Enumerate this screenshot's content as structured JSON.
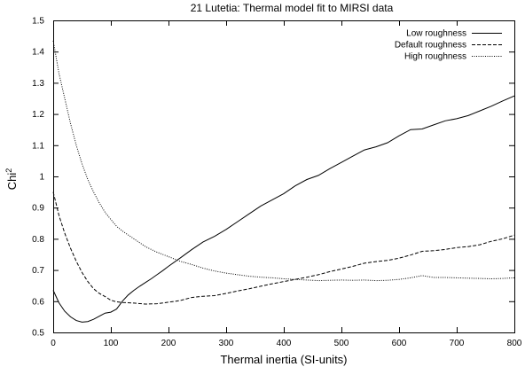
{
  "chart_data": {
    "type": "line",
    "title": "21 Lutetia: Thermal model fit to MIRSI data",
    "xlabel": "Thermal inertia (SI-units)",
    "ylabel_base": "Chi",
    "ylabel_sup": "2",
    "xlim": [
      0,
      800
    ],
    "ylim": [
      0.5,
      1.5
    ],
    "xticks": [
      0,
      100,
      200,
      300,
      400,
      500,
      600,
      700,
      800
    ],
    "yticks": [
      0.5,
      0.6,
      0.7,
      0.8,
      0.9,
      1,
      1.1,
      1.2,
      1.3,
      1.4,
      1.5
    ],
    "grid": false,
    "legend_position": "top-right",
    "series": [
      {
        "name": "Low roughness",
        "style": "solid",
        "x": [
          0,
          10,
          20,
          30,
          40,
          50,
          60,
          70,
          80,
          90,
          100,
          110,
          120,
          130,
          140,
          150,
          160,
          170,
          180,
          190,
          200,
          220,
          240,
          260,
          280,
          300,
          320,
          340,
          360,
          380,
          400,
          420,
          440,
          460,
          480,
          500,
          520,
          540,
          560,
          580,
          600,
          620,
          640,
          660,
          680,
          700,
          720,
          740,
          760,
          780,
          800
        ],
        "y": [
          0.635,
          0.595,
          0.568,
          0.55,
          0.538,
          0.533,
          0.535,
          0.542,
          0.552,
          0.562,
          0.565,
          0.575,
          0.6,
          0.62,
          0.635,
          0.648,
          0.66,
          0.672,
          0.685,
          0.698,
          0.712,
          0.738,
          0.765,
          0.79,
          0.808,
          0.83,
          0.855,
          0.88,
          0.905,
          0.925,
          0.945,
          0.97,
          0.99,
          1.003,
          1.025,
          1.045,
          1.065,
          1.085,
          1.095,
          1.108,
          1.13,
          1.15,
          1.152,
          1.165,
          1.178,
          1.185,
          1.195,
          1.21,
          1.225,
          1.242,
          1.258
        ]
      },
      {
        "name": "Default roughness",
        "style": "dashed",
        "x": [
          0,
          10,
          20,
          30,
          40,
          50,
          60,
          70,
          80,
          90,
          100,
          110,
          120,
          140,
          160,
          180,
          200,
          220,
          240,
          260,
          280,
          300,
          320,
          340,
          360,
          380,
          400,
          420,
          440,
          460,
          480,
          500,
          520,
          540,
          560,
          580,
          600,
          620,
          640,
          660,
          680,
          700,
          720,
          740,
          760,
          780,
          800
        ],
        "y": [
          0.95,
          0.875,
          0.818,
          0.77,
          0.728,
          0.692,
          0.663,
          0.64,
          0.625,
          0.615,
          0.603,
          0.598,
          0.596,
          0.594,
          0.591,
          0.592,
          0.597,
          0.602,
          0.612,
          0.616,
          0.618,
          0.625,
          0.633,
          0.64,
          0.648,
          0.656,
          0.663,
          0.67,
          0.677,
          0.685,
          0.695,
          0.703,
          0.712,
          0.722,
          0.727,
          0.731,
          0.738,
          0.748,
          0.76,
          0.762,
          0.766,
          0.772,
          0.775,
          0.781,
          0.792,
          0.8,
          0.812
        ]
      },
      {
        "name": "High roughness",
        "style": "dotted",
        "x": [
          0,
          10,
          20,
          30,
          40,
          50,
          60,
          70,
          80,
          90,
          100,
          110,
          120,
          140,
          160,
          180,
          200,
          220,
          240,
          260,
          280,
          300,
          320,
          340,
          360,
          380,
          400,
          420,
          440,
          460,
          480,
          500,
          520,
          540,
          560,
          580,
          600,
          620,
          640,
          660,
          680,
          700,
          720,
          740,
          760,
          780,
          800
        ],
        "y": [
          1.435,
          1.33,
          1.25,
          1.17,
          1.1,
          1.04,
          0.99,
          0.95,
          0.915,
          0.885,
          0.862,
          0.84,
          0.825,
          0.8,
          0.775,
          0.757,
          0.743,
          0.728,
          0.718,
          0.706,
          0.697,
          0.69,
          0.685,
          0.68,
          0.677,
          0.675,
          0.672,
          0.67,
          0.668,
          0.666,
          0.667,
          0.668,
          0.667,
          0.668,
          0.666,
          0.667,
          0.67,
          0.675,
          0.682,
          0.676,
          0.676,
          0.675,
          0.674,
          0.673,
          0.672,
          0.673,
          0.675
        ]
      }
    ]
  }
}
